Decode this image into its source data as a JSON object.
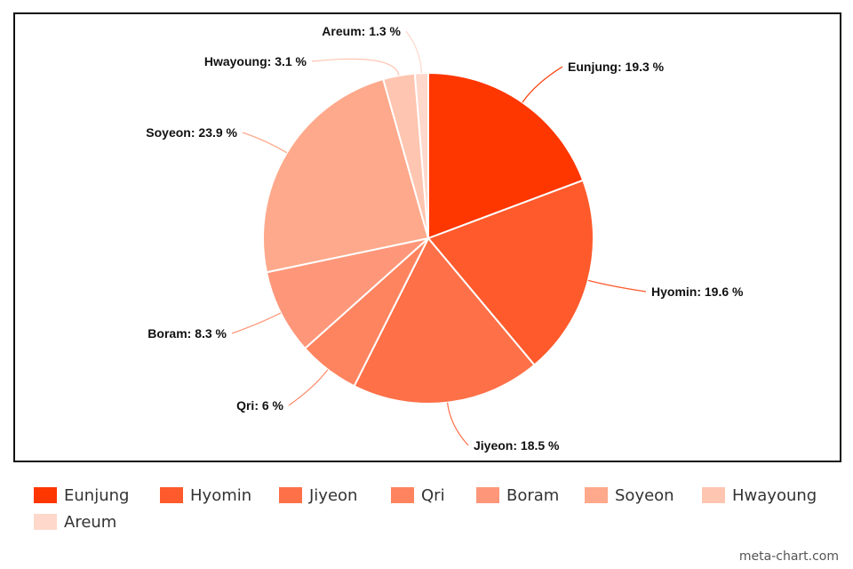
{
  "chart_data": {
    "type": "pie",
    "slices": [
      {
        "label": "Eunjung",
        "value": 19.3,
        "display": "Eunjung: 19.3 %",
        "color": "#fe3600",
        "label_side": "right"
      },
      {
        "label": "Hyomin",
        "value": 19.6,
        "display": "Hyomin: 19.6 %",
        "color": "#fe5a2c",
        "label_side": "right"
      },
      {
        "label": "Jiyeon",
        "value": 18.5,
        "display": "Jiyeon: 18.5 %",
        "color": "#fe7048",
        "label_side": "right"
      },
      {
        "label": "Qri",
        "value": 6,
        "display": "Qri: 6 %",
        "color": "#fe8460",
        "label_side": "left"
      },
      {
        "label": "Boram",
        "value": 8.3,
        "display": "Boram: 8.3 %",
        "color": "#fe977a",
        "label_side": "left"
      },
      {
        "label": "Soyeon",
        "value": 23.9,
        "display": "Soyeon: 23.9 %",
        "color": "#fea98b",
        "label_side": "left"
      },
      {
        "label": "Hwayoung",
        "value": 3.1,
        "display": "Hwayoung: 3.1 %",
        "color": "#fec5b0",
        "label_side": "left"
      },
      {
        "label": "Areum",
        "value": 1.3,
        "display": "Areum: 1.3 %",
        "color": "#fed8cb",
        "label_side": "left"
      }
    ],
    "start": "12 o'clock",
    "direction": "clockwise",
    "legend_placement": "bottom"
  },
  "legend": {
    "items": [
      "Eunjung",
      "Hyomin",
      "Jiyeon",
      "Qri",
      "Boram",
      "Soyeon",
      "Hwayoung",
      "Areum"
    ]
  },
  "watermark": "meta-chart.com"
}
